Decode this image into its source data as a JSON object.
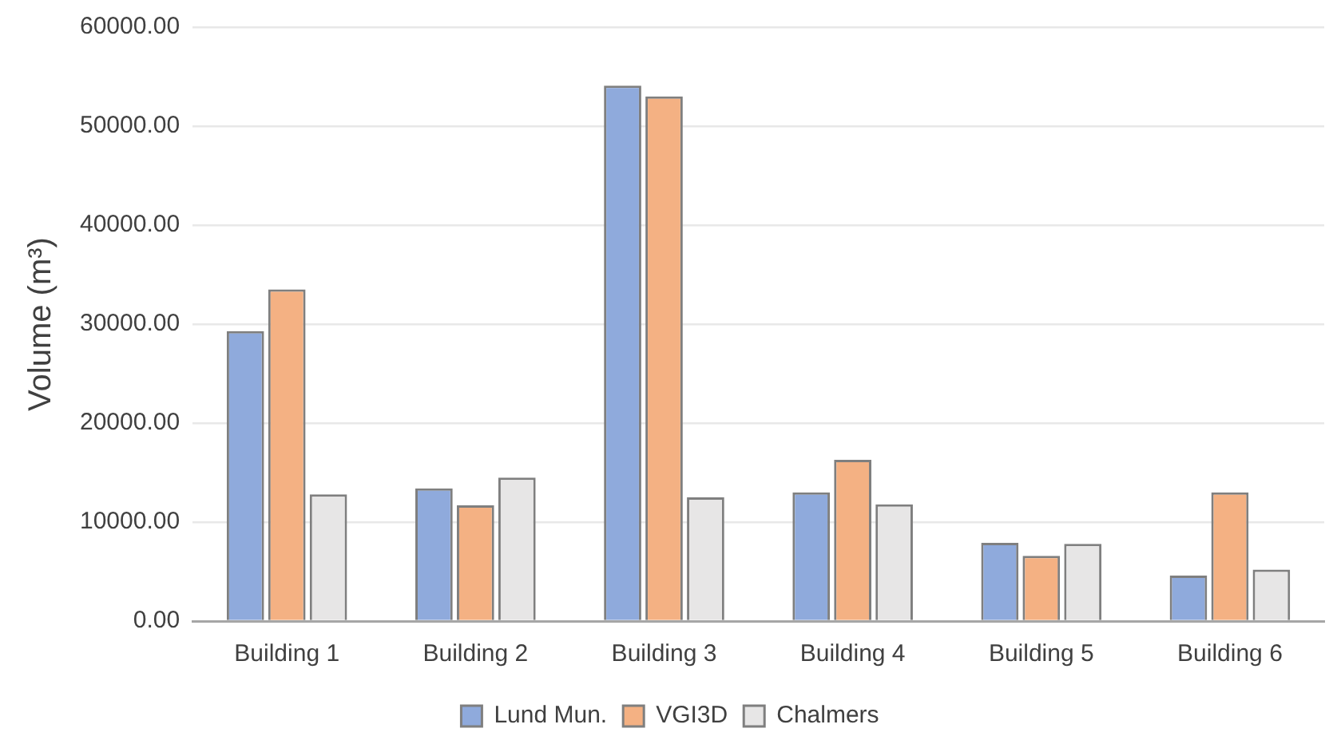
{
  "chart_data": {
    "type": "bar",
    "ylabel": "Volume (m³)",
    "categories": [
      "Building 1",
      "Building 2",
      "Building 3",
      "Building 4",
      "Building 5",
      "Building 6"
    ],
    "series": [
      {
        "name": "Lund Mun.",
        "color": "#8faadc",
        "values": [
          29300,
          13400,
          54100,
          13000,
          7900,
          4600
        ]
      },
      {
        "name": "VGI3D",
        "color": "#f4b183",
        "values": [
          33500,
          11700,
          53000,
          16300,
          6600,
          13000
        ]
      },
      {
        "name": "Chalmers",
        "color": "#e7e6e6",
        "values": [
          12800,
          14500,
          12500,
          11800,
          7800,
          5200
        ]
      }
    ],
    "ylim": [
      0,
      60000
    ],
    "yticks": [
      {
        "value": 0,
        "label": "0.00"
      },
      {
        "value": 10000,
        "label": "10000.00"
      },
      {
        "value": 20000,
        "label": "20000.00"
      },
      {
        "value": 30000,
        "label": "30000.00"
      },
      {
        "value": 40000,
        "label": "40000.00"
      },
      {
        "value": 50000,
        "label": "50000.00"
      },
      {
        "value": 60000,
        "label": "60000.00"
      }
    ],
    "grid": "y",
    "legend": "bottom"
  }
}
